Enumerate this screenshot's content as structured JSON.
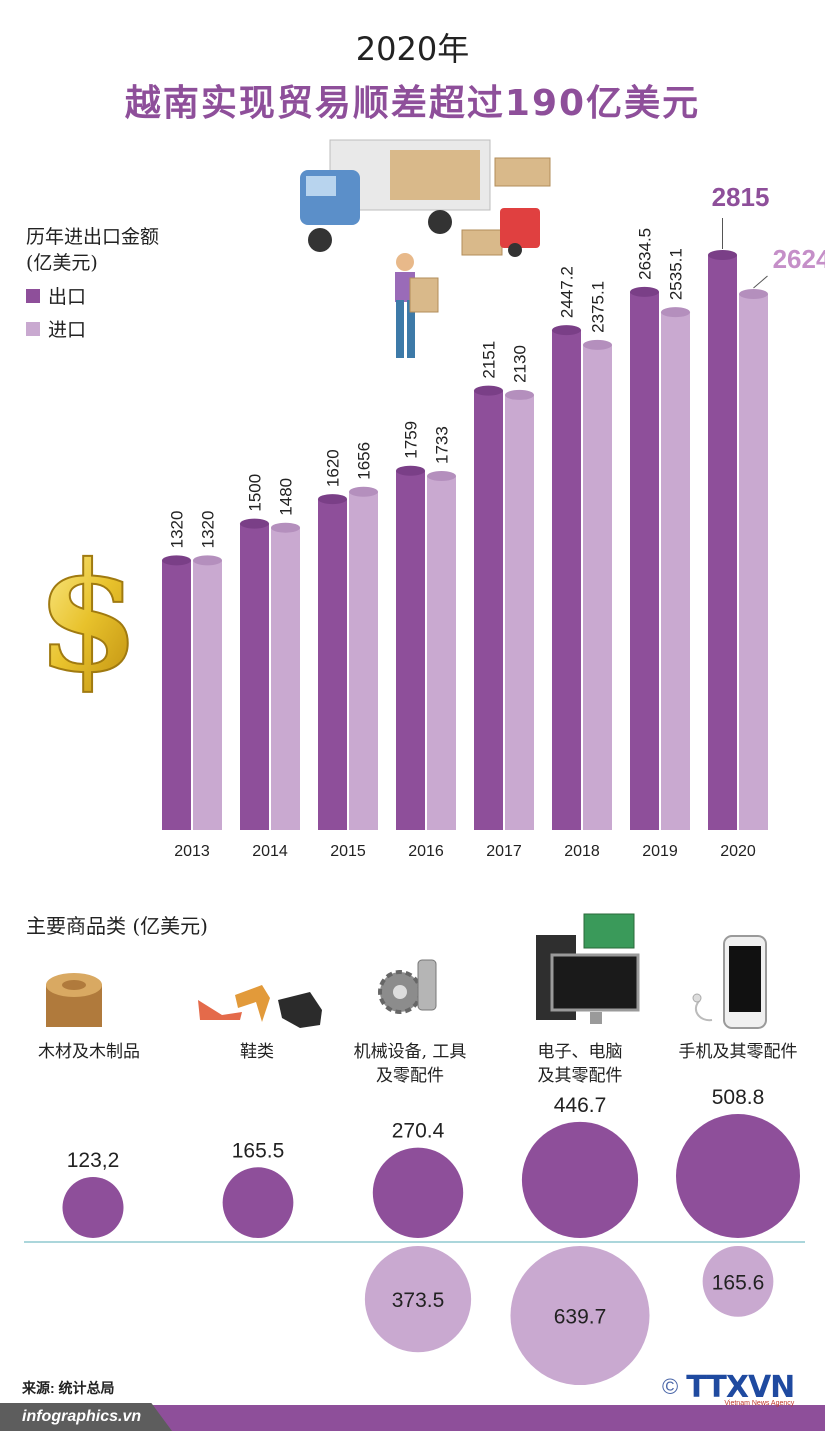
{
  "header": {
    "year_title": "2020年",
    "main_title": "越南实现贸易顺差超过190亿美元"
  },
  "legend": {
    "title_line1": "历年进出口金额",
    "title_line2": "(亿美元)",
    "items": [
      {
        "label": "出口",
        "color": "#8e4f9a"
      },
      {
        "label": "进口",
        "color": "#c9a9d0"
      }
    ]
  },
  "chart_data": [
    {
      "type": "bar",
      "categories": [
        "2013",
        "2014",
        "2015",
        "2016",
        "2017",
        "2018",
        "2019",
        "2020"
      ],
      "series": [
        {
          "name": "出口",
          "values": [
            1320,
            1500,
            1620,
            1759,
            2151,
            2447.2,
            2634.5,
            2815
          ],
          "labels": [
            "1320",
            "1500",
            "1620",
            "1759",
            "2151",
            "2447.2",
            "2634.5",
            "2815"
          ],
          "color": "#8e4f9a"
        },
        {
          "name": "进口",
          "values": [
            1320,
            1480,
            1656,
            1733,
            2130,
            2375.1,
            2535.1,
            2624
          ],
          "labels": [
            "1320",
            "1480",
            "1656",
            "1733",
            "2130",
            "2375.1",
            "2535.1",
            "2624"
          ],
          "color": "#c9a9d0"
        }
      ],
      "ylim": [
        0,
        2815
      ]
    },
    {
      "type": "bubble",
      "title": "主要商品类 (亿美元)",
      "categories": [
        "木材及木制品",
        "鞋类",
        "机械设备, 工具\n及零配件",
        "电子、电脑\n及其零配件",
        "手机及其零配件"
      ],
      "series": [
        {
          "name": "出口",
          "values": [
            123.2,
            165.5,
            270.4,
            446.7,
            508.8
          ],
          "labels": [
            "123,2",
            "165.5",
            "270.4",
            "446.7",
            "508.8"
          ],
          "color": "#8e4f9a"
        },
        {
          "name": "进口",
          "values": [
            null,
            null,
            373.5,
            639.7,
            165.6
          ],
          "labels": [
            "",
            "",
            "373.5",
            "639.7",
            "165.6"
          ],
          "color": "#c9a9d0"
        }
      ]
    }
  ],
  "products": {
    "title": "主要商品类 (亿美元)",
    "labels": [
      [
        "木材及木制品"
      ],
      [
        "鞋类"
      ],
      [
        "机械设备, 工具",
        "及零配件"
      ],
      [
        "电子、电脑",
        "及其零配件"
      ],
      [
        "手机及其零配件"
      ]
    ]
  },
  "footer": {
    "source": "来源: 统计总局",
    "site": "infographics.vn",
    "copyright": "©",
    "agency": "TTXVN",
    "agency_sub": "Vietnam News Agency"
  }
}
